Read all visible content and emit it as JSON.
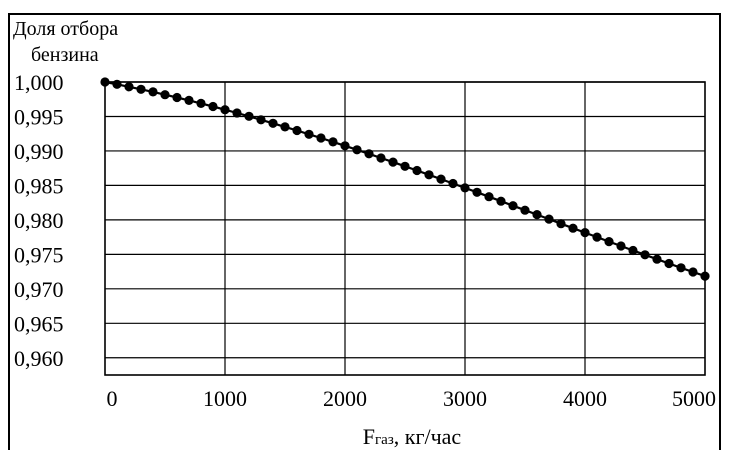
{
  "chart_data": {
    "type": "line",
    "title": "",
    "ylabel_line1": "Доля отбора",
    "ylabel_line2": "бензина",
    "xlabel_main": "F",
    "xlabel_sub": "газ",
    "xlabel_unit": ", кг/час",
    "xlim": [
      0,
      5000
    ],
    "ylim": [
      0.9575,
      1.0
    ],
    "grid": true,
    "marker": "circle",
    "x_ticks": [
      {
        "value": 0,
        "label": "0"
      },
      {
        "value": 1000,
        "label": "1000"
      },
      {
        "value": 2000,
        "label": "2000"
      },
      {
        "value": 3000,
        "label": "3000"
      },
      {
        "value": 4000,
        "label": "4000"
      },
      {
        "value": 5000,
        "label": "5000"
      }
    ],
    "y_ticks": [
      {
        "value": 1.0,
        "label": "1,000"
      },
      {
        "value": 0.995,
        "label": "0,995"
      },
      {
        "value": 0.99,
        "label": "0,990"
      },
      {
        "value": 0.985,
        "label": "0,985"
      },
      {
        "value": 0.98,
        "label": "0,980"
      },
      {
        "value": 0.975,
        "label": "0,975"
      },
      {
        "value": 0.97,
        "label": "0,970"
      },
      {
        "value": 0.965,
        "label": "0,965"
      },
      {
        "value": 0.96,
        "label": "0,960"
      }
    ],
    "series": [
      {
        "color": "#000000",
        "x": [
          0,
          100,
          200,
          300,
          400,
          500,
          600,
          700,
          800,
          900,
          1000,
          1100,
          1200,
          1300,
          1400,
          1500,
          1600,
          1700,
          1800,
          1900,
          2000,
          2100,
          2200,
          2300,
          2400,
          2500,
          2600,
          2700,
          2800,
          2900,
          3000,
          3100,
          3200,
          3300,
          3400,
          3500,
          3600,
          3700,
          3800,
          3900,
          4000,
          4100,
          4200,
          4300,
          4400,
          4500,
          4600,
          4700,
          4800,
          4900,
          5000
        ],
        "y": [
          1.0,
          0.99966,
          0.99931,
          0.99894,
          0.99856,
          0.99816,
          0.99775,
          0.99733,
          0.99689,
          0.99644,
          0.99598,
          0.9955,
          0.99502,
          0.99452,
          0.99401,
          0.99349,
          0.99296,
          0.99242,
          0.99187,
          0.99131,
          0.99074,
          0.99016,
          0.98958,
          0.98898,
          0.98838,
          0.98777,
          0.98716,
          0.98654,
          0.98591,
          0.98528,
          0.98464,
          0.984,
          0.98336,
          0.98271,
          0.98206,
          0.98141,
          0.98076,
          0.98011,
          0.97945,
          0.9788,
          0.97815,
          0.9775,
          0.97685,
          0.97621,
          0.97556,
          0.97493,
          0.9743,
          0.97367,
          0.97305,
          0.97244,
          0.97184
        ]
      }
    ]
  }
}
